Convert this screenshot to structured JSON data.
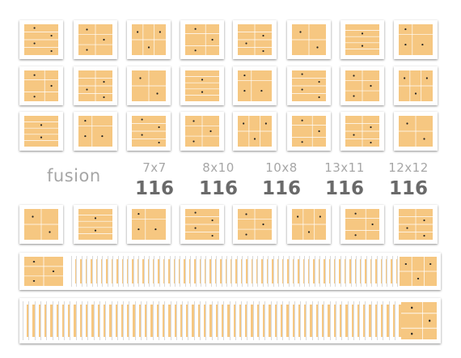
{
  "colors": {
    "paper": "#f6c781",
    "line": "#ffffff",
    "dot": "#222222",
    "frame": "#ffffff",
    "label": "#a6a6a6",
    "count": "#6a6a6a"
  },
  "brand": {
    "word": "fusion"
  },
  "sizes": [
    {
      "label": "7x7",
      "count": "116"
    },
    {
      "label": "8x10",
      "count": "116"
    },
    {
      "label": "10x8",
      "count": "116"
    },
    {
      "label": "13x11",
      "count": "116"
    },
    {
      "label": "12x12",
      "count": "116"
    }
  ],
  "tile_rows": [
    {
      "name": "row-1",
      "count": 8
    },
    {
      "name": "row-2",
      "count": 8
    },
    {
      "name": "row-3",
      "count": 8
    },
    {
      "name": "row-4",
      "count": 8
    }
  ],
  "album_strips": [
    {
      "name": "album-strip-1"
    },
    {
      "name": "album-strip-2"
    }
  ]
}
